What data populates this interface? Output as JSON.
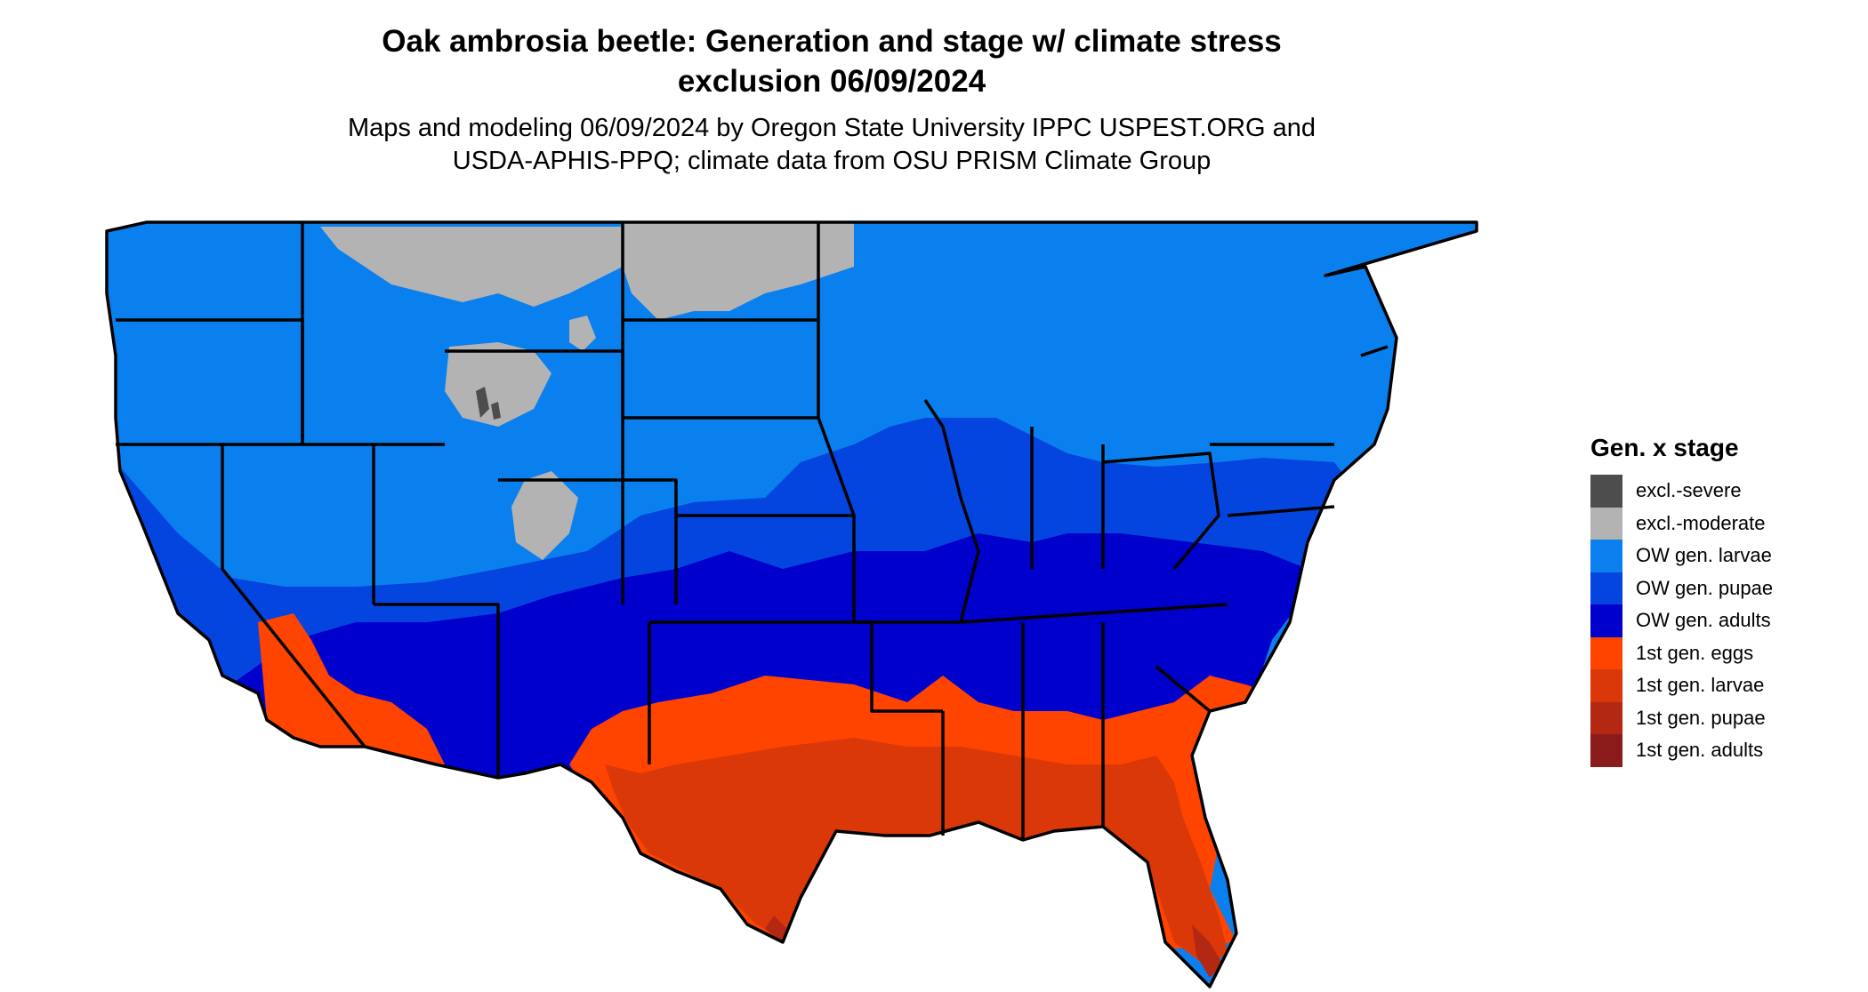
{
  "title_line1": "Oak ambrosia beetle: Generation and stage w/ climate stress",
  "title_line2": "exclusion 06/09/2024",
  "subtitle_line1": "Maps and modeling 06/09/2024 by Oregon State University IPPC USPEST.ORG and",
  "subtitle_line2": "USDA-APHIS-PPQ; climate data from OSU PRISM Climate Group",
  "legend": {
    "title": "Gen. x stage",
    "items": [
      {
        "label": "excl.-severe",
        "color": "#4d4d4d"
      },
      {
        "label": "excl.-moderate",
        "color": "#b3b3b3"
      },
      {
        "label": "OW gen. larvae",
        "color": "#0a80ee"
      },
      {
        "label": "OW gen. pupae",
        "color": "#0545df"
      },
      {
        "label": "OW gen. adults",
        "color": "#0000cc"
      },
      {
        "label": "1st gen. eggs",
        "color": "#ff4400"
      },
      {
        "label": "1st gen. larvae",
        "color": "#db380a"
      },
      {
        "label": "1st gen. pupae",
        "color": "#b32812"
      },
      {
        "label": "1st gen. adults",
        "color": "#8b1a1a"
      }
    ]
  }
}
